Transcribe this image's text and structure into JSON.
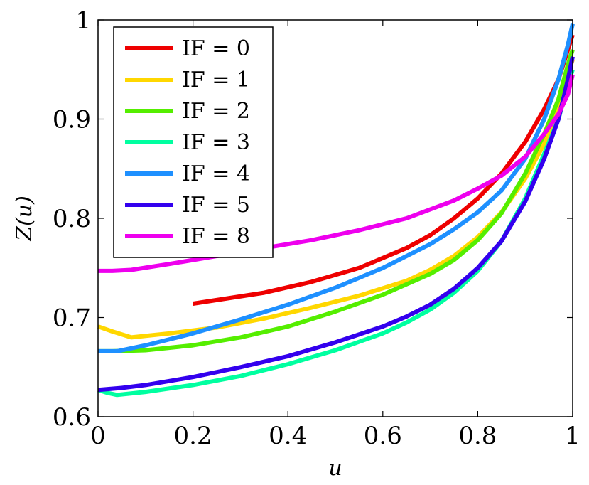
{
  "chart_data": {
    "type": "line",
    "xlabel": "u",
    "ylabel": "Z(u)",
    "xlim": [
      0,
      1
    ],
    "ylim": [
      0.6,
      1
    ],
    "x_ticks": [
      "0",
      "0.2",
      "0.4",
      "0.6",
      "0.8",
      "1"
    ],
    "y_ticks": [
      "0.6",
      "0.7",
      "0.8",
      "0.9",
      "1"
    ],
    "x_tick_values": [
      0,
      0.2,
      0.4,
      0.6,
      0.8,
      1
    ],
    "y_tick_values": [
      0.6,
      0.7,
      0.8,
      0.9,
      1
    ],
    "grid": false,
    "legend_position": "top-left",
    "series": [
      {
        "name": "IF = 0",
        "color": "#ee0000",
        "points": [
          [
            0.2,
            0.714
          ],
          [
            0.35,
            0.725
          ],
          [
            0.45,
            0.736
          ],
          [
            0.55,
            0.75
          ],
          [
            0.65,
            0.77
          ],
          [
            0.7,
            0.783
          ],
          [
            0.75,
            0.8
          ],
          [
            0.8,
            0.82
          ],
          [
            0.85,
            0.845
          ],
          [
            0.9,
            0.877
          ],
          [
            0.94,
            0.91
          ],
          [
            0.97,
            0.94
          ],
          [
            0.99,
            0.97
          ],
          [
            1.0,
            0.985
          ]
        ]
      },
      {
        "name": "IF = 1",
        "color": "#ffd700",
        "points": [
          [
            0.0,
            0.691
          ],
          [
            0.03,
            0.686
          ],
          [
            0.07,
            0.68
          ],
          [
            0.15,
            0.684
          ],
          [
            0.25,
            0.69
          ],
          [
            0.35,
            0.699
          ],
          [
            0.45,
            0.71
          ],
          [
            0.55,
            0.722
          ],
          [
            0.65,
            0.737
          ],
          [
            0.7,
            0.748
          ],
          [
            0.75,
            0.762
          ],
          [
            0.8,
            0.781
          ],
          [
            0.85,
            0.806
          ],
          [
            0.9,
            0.84
          ],
          [
            0.94,
            0.875
          ],
          [
            0.97,
            0.91
          ],
          [
            0.99,
            0.945
          ],
          [
            1.0,
            0.96
          ]
        ]
      },
      {
        "name": "IF = 2",
        "color": "#55ee00",
        "points": [
          [
            0.0,
            0.666
          ],
          [
            0.03,
            0.666
          ],
          [
            0.1,
            0.667
          ],
          [
            0.2,
            0.672
          ],
          [
            0.3,
            0.68
          ],
          [
            0.4,
            0.691
          ],
          [
            0.5,
            0.706
          ],
          [
            0.6,
            0.723
          ],
          [
            0.7,
            0.744
          ],
          [
            0.75,
            0.758
          ],
          [
            0.8,
            0.778
          ],
          [
            0.85,
            0.805
          ],
          [
            0.9,
            0.845
          ],
          [
            0.94,
            0.885
          ],
          [
            0.97,
            0.92
          ],
          [
            0.99,
            0.955
          ],
          [
            1.0,
            0.97
          ]
        ]
      },
      {
        "name": "IF = 3",
        "color": "#00ffa0",
        "points": [
          [
            0.0,
            0.627
          ],
          [
            0.02,
            0.624
          ],
          [
            0.04,
            0.622
          ],
          [
            0.1,
            0.625
          ],
          [
            0.2,
            0.632
          ],
          [
            0.3,
            0.641
          ],
          [
            0.4,
            0.653
          ],
          [
            0.5,
            0.667
          ],
          [
            0.6,
            0.684
          ],
          [
            0.65,
            0.695
          ],
          [
            0.7,
            0.708
          ],
          [
            0.75,
            0.725
          ],
          [
            0.8,
            0.747
          ],
          [
            0.85,
            0.777
          ],
          [
            0.9,
            0.82
          ],
          [
            0.94,
            0.865
          ],
          [
            0.97,
            0.9
          ],
          [
            0.99,
            0.935
          ],
          [
            1.0,
            0.95
          ]
        ]
      },
      {
        "name": "IF = 4",
        "color": "#1e90ff",
        "points": [
          [
            0.0,
            0.666
          ],
          [
            0.04,
            0.666
          ],
          [
            0.1,
            0.672
          ],
          [
            0.2,
            0.684
          ],
          [
            0.3,
            0.698
          ],
          [
            0.4,
            0.713
          ],
          [
            0.5,
            0.73
          ],
          [
            0.6,
            0.75
          ],
          [
            0.7,
            0.774
          ],
          [
            0.75,
            0.789
          ],
          [
            0.8,
            0.806
          ],
          [
            0.85,
            0.828
          ],
          [
            0.9,
            0.86
          ],
          [
            0.94,
            0.9
          ],
          [
            0.97,
            0.94
          ],
          [
            0.99,
            0.975
          ],
          [
            1.0,
            0.996
          ]
        ]
      },
      {
        "name": "IF = 5",
        "color": "#3300ee",
        "points": [
          [
            0.0,
            0.627
          ],
          [
            0.05,
            0.629
          ],
          [
            0.1,
            0.632
          ],
          [
            0.2,
            0.64
          ],
          [
            0.3,
            0.65
          ],
          [
            0.4,
            0.661
          ],
          [
            0.5,
            0.675
          ],
          [
            0.6,
            0.691
          ],
          [
            0.65,
            0.701
          ],
          [
            0.7,
            0.713
          ],
          [
            0.75,
            0.729
          ],
          [
            0.8,
            0.75
          ],
          [
            0.85,
            0.777
          ],
          [
            0.9,
            0.817
          ],
          [
            0.94,
            0.86
          ],
          [
            0.97,
            0.9
          ],
          [
            0.99,
            0.94
          ],
          [
            1.0,
            0.963
          ]
        ]
      },
      {
        "name": "IF = 8",
        "color": "#ee00ee",
        "points": [
          [
            0.0,
            0.747
          ],
          [
            0.03,
            0.747
          ],
          [
            0.07,
            0.748
          ],
          [
            0.15,
            0.754
          ],
          [
            0.25,
            0.762
          ],
          [
            0.35,
            0.77
          ],
          [
            0.45,
            0.778
          ],
          [
            0.55,
            0.788
          ],
          [
            0.65,
            0.8
          ],
          [
            0.75,
            0.818
          ],
          [
            0.8,
            0.83
          ],
          [
            0.85,
            0.843
          ],
          [
            0.9,
            0.862
          ],
          [
            0.94,
            0.885
          ],
          [
            0.97,
            0.905
          ],
          [
            0.99,
            0.925
          ],
          [
            1.0,
            0.945
          ]
        ]
      }
    ]
  }
}
